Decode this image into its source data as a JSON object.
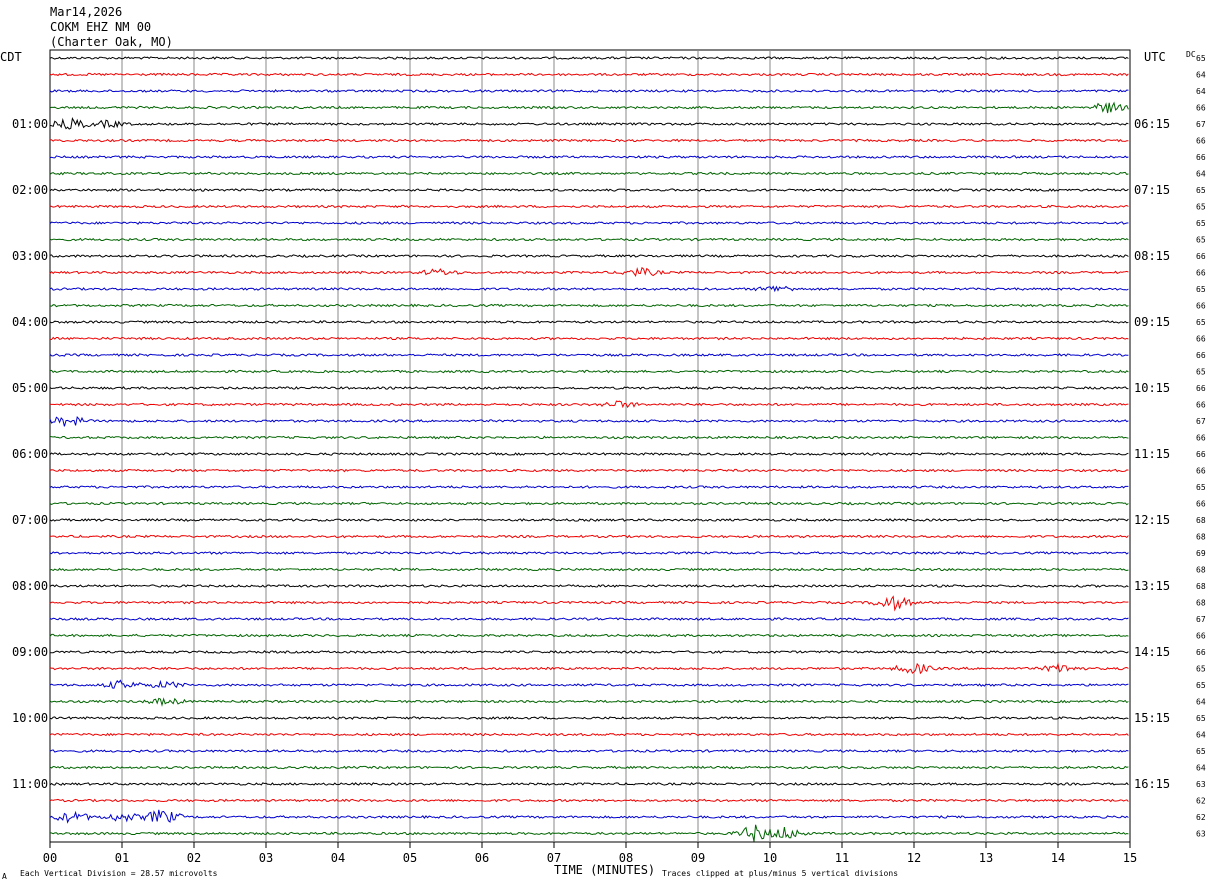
{
  "header": {
    "date": "Mar14,2026",
    "station": "COKM EHZ NM 00",
    "location": "(Charter Oak, MO)"
  },
  "left_tz_label": "CDT",
  "right_tz_label": "UTC",
  "dc_header": "DC",
  "footer": {
    "scale_text": "Each Vertical Division =   28.57 microvolts",
    "clip_text": "Traces clipped at plus/minus 5 vertical divisions",
    "corner_mark": "A"
  },
  "colors": {
    "cycle": [
      "#000000",
      "#ee0000",
      "#0000cc",
      "#006400"
    ],
    "grid": "#888888"
  },
  "chart_data": {
    "type": "line",
    "subtype": "helicorder",
    "xlabel": "TIME (MINUTES)",
    "x_ticks": [
      "00",
      "01",
      "02",
      "03",
      "04",
      "05",
      "06",
      "07",
      "08",
      "09",
      "10",
      "11",
      "12",
      "13",
      "14",
      "15"
    ],
    "xlim": [
      0,
      15
    ],
    "trace_minutes": 15,
    "left_hour_labels": [
      "01:00",
      "02:00",
      "03:00",
      "04:00",
      "05:00",
      "06:00",
      "07:00",
      "08:00",
      "09:00",
      "10:00",
      "11:00"
    ],
    "right_hour_labels": [
      "06:15",
      "07:15",
      "08:15",
      "09:15",
      "10:15",
      "11:15",
      "12:15",
      "13:15",
      "14:15",
      "15:15",
      "16:15"
    ],
    "hour_label_trace_index": [
      4,
      8,
      12,
      16,
      20,
      24,
      28,
      32,
      36,
      40,
      44
    ],
    "dc_offsets": [
      65,
      64,
      64,
      66,
      67,
      66,
      66,
      64,
      65,
      65,
      65,
      65,
      66,
      66,
      65,
      66,
      65,
      66,
      66,
      65,
      66,
      66,
      67,
      66,
      66,
      66,
      65,
      66,
      68,
      68,
      69,
      68,
      68,
      68,
      67,
      66,
      66,
      65,
      65,
      64,
      65,
      64,
      65,
      64,
      63,
      62,
      62,
      63
    ],
    "events": [
      {
        "trace": 3,
        "minute": 14.7,
        "amplitude": 5
      },
      {
        "trace": 4,
        "minute": 0.3,
        "amplitude": 5
      },
      {
        "trace": 4,
        "minute": 0.8,
        "amplitude": 3
      },
      {
        "trace": 13,
        "minute": 8.2,
        "amplitude": 4
      },
      {
        "trace": 13,
        "minute": 5.4,
        "amplitude": 3
      },
      {
        "trace": 14,
        "minute": 10.1,
        "amplitude": 3
      },
      {
        "trace": 22,
        "minute": 0.25,
        "amplitude": 5
      },
      {
        "trace": 21,
        "minute": 7.9,
        "amplitude": 3
      },
      {
        "trace": 33,
        "minute": 11.7,
        "amplitude": 7
      },
      {
        "trace": 37,
        "minute": 12.0,
        "amplitude": 5
      },
      {
        "trace": 37,
        "minute": 14.05,
        "amplitude": 4
      },
      {
        "trace": 38,
        "minute": 1.0,
        "amplitude": 4
      },
      {
        "trace": 38,
        "minute": 1.6,
        "amplitude": 3
      },
      {
        "trace": 39,
        "minute": 1.6,
        "amplitude": 3
      },
      {
        "trace": 46,
        "minute": 0.3,
        "amplitude": 5
      },
      {
        "trace": 46,
        "minute": 1.55,
        "amplitude": 7
      },
      {
        "trace": 46,
        "minute": 1.0,
        "amplitude": 4
      },
      {
        "trace": 47,
        "minute": 9.8,
        "amplitude": 8
      },
      {
        "trace": 47,
        "minute": 10.2,
        "amplitude": 6
      }
    ]
  }
}
